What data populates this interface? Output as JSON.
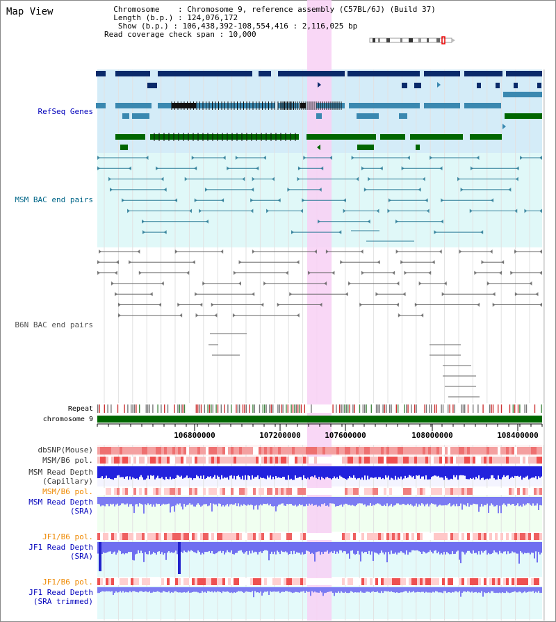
{
  "app": {
    "title": "Map View"
  },
  "info": {
    "chromosome_label": "Chromosome",
    "chromosome_value": "Chromosome 9, reference assembly (C57BL/6J) (Build 37)",
    "length_label": "Length (b.p.)",
    "length_value": "124,076,172",
    "show_label": "Show (b.p.)",
    "show_value": "106,438,392-108,554,416 : 2,116,025 bp",
    "coverage_label": "Read coverage check span",
    "coverage_value": "10,000"
  },
  "tracks": {
    "refseq": {
      "label": "RefSeq Genes",
      "color": "#0000bb"
    },
    "msm_bac": {
      "label": "MSM BAC end pairs",
      "color": "#006688"
    },
    "b6n_bac": {
      "label": "B6N BAC end pairs",
      "color": "#555555"
    },
    "repeat": {
      "label": "Repeat"
    },
    "chromosome": {
      "label": "chromosome 9"
    },
    "dbsnp": {
      "label": "dbSNP(Mouse)"
    },
    "msm_b6_pol": {
      "label": "MSM/B6 pol."
    },
    "msm_depth_cap": {
      "line1": "MSM Read Depth",
      "line2": "(Capillary)"
    },
    "msm_b6_pol2": {
      "label": "MSM/B6 pol.",
      "color": "#ee8800"
    },
    "msm_depth_sra": {
      "line1": "MSM Read Depth",
      "line2": "(SRA)",
      "color": "#0000bb"
    },
    "jf1_b6_pol": {
      "label": "JF1/B6 pol.",
      "color": "#ee8800"
    },
    "jf1_depth_sra": {
      "line1": "JF1 Read Depth",
      "line2": "(SRA)",
      "color": "#0000bb"
    },
    "jf1_b6_pol2": {
      "label": "JF1/B6 pol.",
      "color": "#ee8800"
    },
    "jf1_depth_trim": {
      "line1": "JF1 Read Depth",
      "line2": "(SRA trimmed)",
      "color": "#0000bb"
    }
  },
  "axis": {
    "ticks": [
      "106800000",
      "107200000",
      "107600000",
      "108000000",
      "108400000"
    ]
  },
  "colors": {
    "highlight": "#f8d0f4",
    "refseq_bg": "#d4ecf8",
    "bac_bg": "#e0f8f8",
    "gene_dark": "#0a2a6a",
    "gene_mid": "#3a88b0",
    "gene_green": "#006600"
  }
}
